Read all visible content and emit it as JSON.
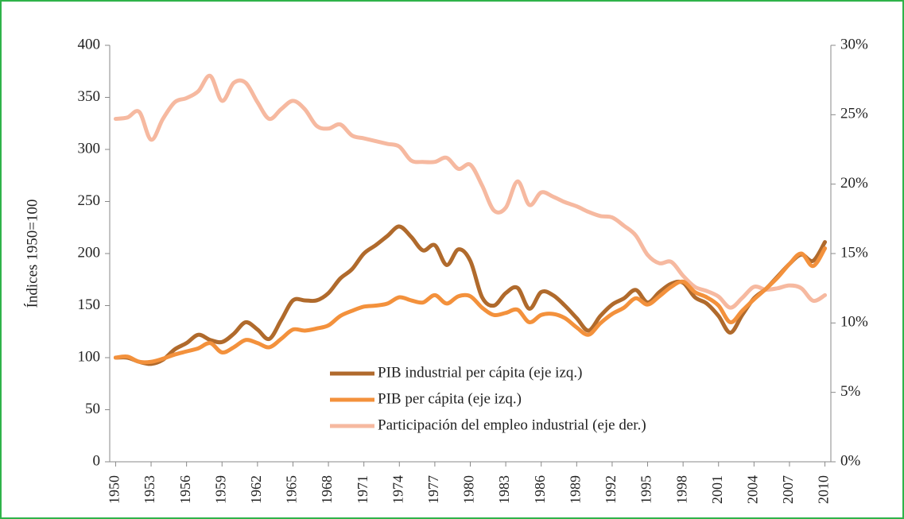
{
  "chart_data": {
    "type": "line",
    "y_label": "Índices 1950=100",
    "x": [
      1950,
      1951,
      1952,
      1953,
      1954,
      1955,
      1956,
      1957,
      1958,
      1959,
      1960,
      1961,
      1962,
      1963,
      1964,
      1965,
      1966,
      1967,
      1968,
      1969,
      1970,
      1971,
      1972,
      1973,
      1974,
      1975,
      1976,
      1977,
      1978,
      1979,
      1980,
      1981,
      1982,
      1983,
      1984,
      1985,
      1986,
      1987,
      1988,
      1989,
      1990,
      1991,
      1992,
      1993,
      1994,
      1995,
      1996,
      1997,
      1998,
      1999,
      2000,
      2001,
      2002,
      2003,
      2004,
      2005,
      2006,
      2007,
      2008,
      2009,
      2010
    ],
    "xlim": [
      1949.5,
      2010.5
    ],
    "xticks": [
      1950,
      1953,
      1956,
      1959,
      1962,
      1965,
      1968,
      1971,
      1974,
      1977,
      1980,
      1983,
      1986,
      1989,
      1992,
      1995,
      1998,
      2001,
      2004,
      2007,
      2010
    ],
    "ylim": [
      0,
      400
    ],
    "yticks": [
      0,
      50,
      100,
      150,
      200,
      250,
      300,
      350,
      400
    ],
    "y2lim": [
      0,
      30
    ],
    "y2ticks": [
      {
        "value": 0,
        "label": "0%"
      },
      {
        "value": 5,
        "label": "5%"
      },
      {
        "value": 10,
        "label": "10%"
      },
      {
        "value": 15,
        "label": "15%"
      },
      {
        "value": 20,
        "label": "20%"
      },
      {
        "value": 25,
        "label": "25%"
      },
      {
        "value": 30,
        "label": "30%"
      }
    ],
    "series": [
      {
        "name": "PIB industrial per cápita (eje izq.)",
        "color": "#b06a2c",
        "values": [
          100,
          100,
          96,
          94,
          98,
          108,
          114,
          122,
          117,
          115,
          123,
          134,
          127,
          118,
          136,
          155,
          155,
          155,
          162,
          176,
          185,
          200,
          208,
          217,
          226,
          216,
          203,
          208,
          189,
          204,
          193,
          158,
          150,
          162,
          167,
          147,
          163,
          160,
          150,
          138,
          126,
          140,
          151,
          157,
          165,
          153,
          163,
          171,
          172,
          158,
          152,
          140,
          124,
          141,
          157,
          166,
          178,
          190,
          199,
          193,
          211
        ]
      },
      {
        "name": "PIB per cápita (eje izq.)",
        "color": "#f3913c",
        "values": [
          100,
          101,
          96,
          96,
          99,
          103,
          106,
          109,
          114,
          105,
          110,
          117,
          114,
          110,
          118,
          127,
          126,
          128,
          131,
          140,
          145,
          149,
          150,
          152,
          158,
          155,
          153,
          160,
          152,
          159,
          159,
          148,
          141,
          143,
          146,
          134,
          141,
          142,
          138,
          129,
          122,
          133,
          142,
          148,
          157,
          151,
          159,
          168,
          173,
          163,
          158,
          150,
          134,
          145,
          156,
          166,
          177,
          190,
          200,
          188,
          205
        ]
      },
      {
        "name": "Participación del empleo industrial (eje der.)",
        "color": "#f6b9a0",
        "axis": "y2",
        "values": [
          24.7,
          24.8,
          25.2,
          23.2,
          24.7,
          25.9,
          26.2,
          26.7,
          27.8,
          26.0,
          27.3,
          27.3,
          25.9,
          24.7,
          25.4,
          26.0,
          25.4,
          24.2,
          24.0,
          24.3,
          23.5,
          23.3,
          23.1,
          22.9,
          22.7,
          21.7,
          21.6,
          21.6,
          21.9,
          21.1,
          21.4,
          19.9,
          18.1,
          18.3,
          20.2,
          18.5,
          19.4,
          19.1,
          18.7,
          18.4,
          18.0,
          17.7,
          17.6,
          17.0,
          16.3,
          14.9,
          14.3,
          14.4,
          13.4,
          12.6,
          12.3,
          11.9,
          11.1,
          11.8,
          12.6,
          12.4,
          12.5,
          12.7,
          12.5,
          11.6,
          12.0
        ]
      }
    ],
    "legend": "lower-center"
  }
}
